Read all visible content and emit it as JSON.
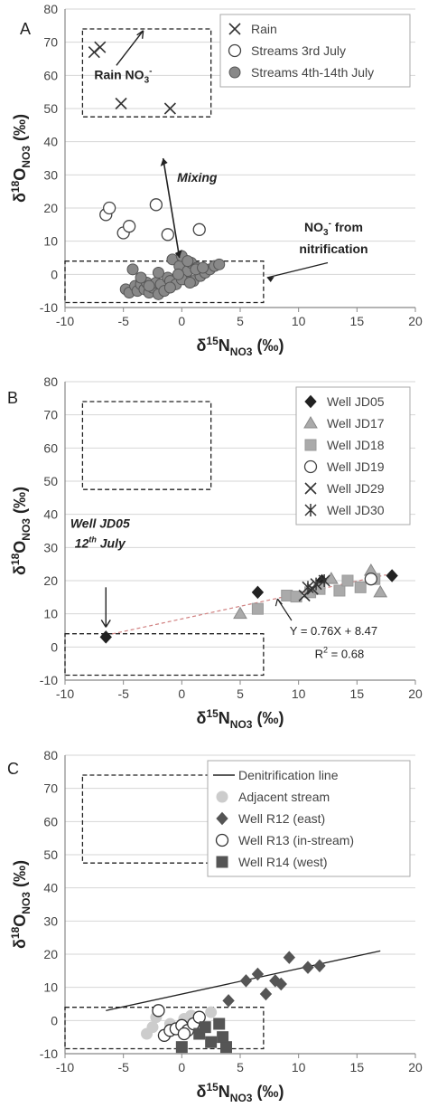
{
  "chart_data": [
    {
      "type": "scatter",
      "panel_label": "A",
      "xlim": [
        -10,
        20
      ],
      "ylim": [
        -10,
        80
      ],
      "xticks": [
        "-10",
        "-5",
        "0",
        "5",
        "10",
        "15",
        "20"
      ],
      "yticks": [
        "-10",
        "0",
        "10",
        "20",
        "30",
        "40",
        "50",
        "60",
        "70",
        "80"
      ],
      "xlabel": {
        "main": "δ",
        "sup": "15",
        "mid": "N",
        "sub": "NO3",
        "tail": " (‰)"
      },
      "ylabel": {
        "main": "δ",
        "sup": "18",
        "mid": "O",
        "sub": "NO3",
        "tail": " (‰)"
      },
      "legend": {
        "position": "top-right",
        "entries": [
          "Rain",
          "Streams 3rd July",
          "Streams 4th-14th July"
        ]
      },
      "series": [
        {
          "name": "Rain",
          "marker": "x",
          "color": "#333333",
          "x": [
            -7.5,
            -7.0,
            -5.2,
            -1.0
          ],
          "y": [
            67,
            68.5,
            51.5,
            50
          ]
        },
        {
          "name": "Streams 3rd July",
          "marker": "open-circle",
          "color": "#444444",
          "x": [
            -6.5,
            -6.2,
            -5.0,
            -4.5,
            -2.2,
            -1.2,
            1.5
          ],
          "y": [
            18,
            20,
            12.5,
            14.5,
            21,
            12,
            13.5
          ]
        },
        {
          "name": "Streams 4th-14th July",
          "marker": "filled-circle",
          "color": "#888888",
          "x": [
            -4.8,
            -4.5,
            -4.2,
            -4.0,
            -3.8,
            -3.5,
            -3.2,
            -3.0,
            -2.8,
            -2.5,
            -2.2,
            -2.0,
            -1.8,
            -1.5,
            -1.2,
            -1.0,
            -0.8,
            -0.5,
            -0.2,
            0.0,
            0.2,
            0.5,
            0.8,
            1.0,
            1.3,
            1.6,
            2.0,
            2.4,
            2.8,
            3.2,
            -2.0,
            -1.0,
            0.0,
            0.5,
            1.2,
            -3.5,
            -2.8,
            -0.3,
            0.7,
            1.8
          ],
          "y": [
            -4.5,
            -5.5,
            1.5,
            -3.5,
            -5.0,
            -3.0,
            -4.5,
            -2.5,
            -5.5,
            -4.0,
            -2.5,
            -6.0,
            -3.0,
            -5.0,
            -1.0,
            -2.0,
            4.5,
            -3.0,
            2.5,
            5.5,
            -1.5,
            1.0,
            3.5,
            -2.0,
            2.0,
            -0.5,
            0.5,
            1.5,
            2.5,
            3.0,
            0.5,
            -4.0,
            -1.5,
            4.0,
            1.5,
            -1.0,
            -3.5,
            0.0,
            -2.5,
            2.0
          ]
        }
      ],
      "boxes": [
        {
          "x": [
            -10,
            7
          ],
          "y": [
            -8.5,
            4
          ]
        },
        {
          "x": [
            -8.5,
            2.5
          ],
          "y": [
            47.5,
            74
          ]
        }
      ],
      "annotations": {
        "rain_box": {
          "main": "Rain NO",
          "sub": "3",
          "sup": "-"
        },
        "mixing": "Mixing",
        "nitrif1": {
          "main": "NO",
          "sub": "3",
          "sup": "-",
          "tail": " from"
        },
        "nitrif2": "nitrification"
      }
    },
    {
      "type": "scatter",
      "panel_label": "B",
      "xlim": [
        -10,
        20
      ],
      "ylim": [
        -10,
        80
      ],
      "xticks": [
        "-10",
        "-5",
        "0",
        "5",
        "10",
        "15",
        "20"
      ],
      "yticks": [
        "-10",
        "0",
        "10",
        "20",
        "30",
        "40",
        "50",
        "60",
        "70",
        "80"
      ],
      "xlabel": {
        "main": "δ",
        "sup": "15",
        "mid": "N",
        "sub": "NO3",
        "tail": " (‰)"
      },
      "ylabel": {
        "main": "δ",
        "sup": "18",
        "mid": "O",
        "sub": "NO3",
        "tail": " (‰)"
      },
      "legend": {
        "position": "top-right",
        "entries": [
          "Well JD05",
          "Well JD17",
          "Well JD18",
          "Well JD19",
          "Well JD29",
          "Well JD30"
        ]
      },
      "series": [
        {
          "name": "Well JD05",
          "marker": "diamond",
          "color": "#222222",
          "x": [
            -6.5,
            6.5,
            12.0,
            18.0
          ],
          "y": [
            3,
            16.5,
            20,
            21.5
          ]
        },
        {
          "name": "Well JD17",
          "marker": "triangle",
          "color": "#aaaaaa",
          "x": [
            5.0,
            12.8,
            16.2,
            17.0
          ],
          "y": [
            10,
            20.5,
            23,
            16.5
          ]
        },
        {
          "name": "Well JD18",
          "marker": "square",
          "color": "#aaaaaa",
          "x": [
            6.5,
            9.0,
            9.8,
            11.0,
            11.8,
            13.5,
            14.2,
            15.3,
            16.5
          ],
          "y": [
            11.5,
            15.5,
            15.2,
            16.5,
            17.5,
            17.0,
            20.0,
            18.0,
            20.5
          ]
        },
        {
          "name": "Well JD19",
          "marker": "open-circle",
          "color": "#444444",
          "x": [
            16.2
          ],
          "y": [
            20.5
          ]
        },
        {
          "name": "Well JD29",
          "marker": "x",
          "color": "#333333",
          "x": [
            10.5,
            11.2
          ],
          "y": [
            15.5,
            17.5
          ]
        },
        {
          "name": "Well JD30",
          "marker": "asterisk",
          "color": "#333333",
          "x": [
            10.8,
            11.5,
            12.2
          ],
          "y": [
            18,
            19,
            20
          ]
        }
      ],
      "fit_line": {
        "slope": 0.76,
        "intercept": 8.47,
        "x": [
          -6.5,
          17.5
        ]
      },
      "boxes": [
        {
          "x": [
            -10,
            7
          ],
          "y": [
            -8.5,
            4
          ]
        },
        {
          "x": [
            -8.5,
            2.5
          ],
          "y": [
            47.5,
            74
          ]
        }
      ],
      "annotations": {
        "well_label": "Well JD05",
        "well_date": {
          "main": "12",
          "sup": "th",
          "tail": " July"
        },
        "equation": "Y = 0.76X + 8.47",
        "r2": {
          "main": "R",
          "sup": "2",
          "tail": " = 0.68"
        }
      }
    },
    {
      "type": "scatter",
      "panel_label": "C",
      "xlim": [
        -10,
        20
      ],
      "ylim": [
        -10,
        80
      ],
      "xticks": [
        "-10",
        "-5",
        "0",
        "5",
        "10",
        "15",
        "20"
      ],
      "yticks": [
        "-10",
        "0",
        "10",
        "20",
        "30",
        "40",
        "50",
        "60",
        "70",
        "80"
      ],
      "xlabel": {
        "main": "δ",
        "sup": "15",
        "mid": "N",
        "sub": "NO3",
        "tail": " (‰)"
      },
      "ylabel": {
        "main": "δ",
        "sup": "18",
        "mid": "O",
        "sub": "NO3",
        "tail": " (‰)"
      },
      "legend": {
        "position": "top-right",
        "entries": [
          "Denitrification line",
          "Adjacent stream",
          "Well R12 (east)",
          "Well R13 (in-stream)",
          "Well R14 (west)"
        ]
      },
      "denitrification_line": {
        "x": [
          -6.5,
          17.0
        ],
        "y": [
          3.0,
          21.0
        ]
      },
      "series": [
        {
          "name": "Adjacent stream",
          "marker": "filled-circle",
          "color": "#cccccc",
          "x": [
            -3.0,
            -2.5,
            -2.2,
            -1.5,
            -1.0,
            0.2,
            0.8,
            2.5
          ],
          "y": [
            -4.0,
            -2.0,
            1.0,
            -4.5,
            -1.0,
            0.5,
            1.5,
            2.5
          ]
        },
        {
          "name": "Well R12 (east)",
          "marker": "diamond",
          "color": "#555555",
          "x": [
            4.0,
            5.5,
            6.5,
            7.2,
            8.0,
            8.5,
            9.2,
            10.8,
            11.8
          ],
          "y": [
            6.0,
            12.0,
            14.0,
            8.0,
            12.0,
            11.0,
            19.0,
            16.0,
            16.5
          ]
        },
        {
          "name": "Well R13 (in-stream)",
          "marker": "open-circle",
          "color": "#333333",
          "x": [
            -2.0,
            -1.5,
            -1.0,
            -0.5,
            0.0,
            0.5,
            1.0,
            1.5,
            0.2
          ],
          "y": [
            3.0,
            -4.5,
            -3.0,
            -2.5,
            -1.5,
            -3.0,
            -1.0,
            1.0,
            -4.0
          ]
        },
        {
          "name": "Well R14 (west)",
          "marker": "square",
          "color": "#555555",
          "x": [
            0.0,
            1.5,
            2.0,
            2.5,
            3.2,
            3.5,
            3.8
          ],
          "y": [
            -8.0,
            -4.0,
            -2.0,
            -6.5,
            -1.0,
            -5.0,
            -8.0
          ]
        }
      ],
      "boxes": [
        {
          "x": [
            -10,
            7
          ],
          "y": [
            -8.5,
            4
          ]
        },
        {
          "x": [
            -8.5,
            2.5
          ],
          "y": [
            47.5,
            74
          ]
        }
      ]
    }
  ]
}
